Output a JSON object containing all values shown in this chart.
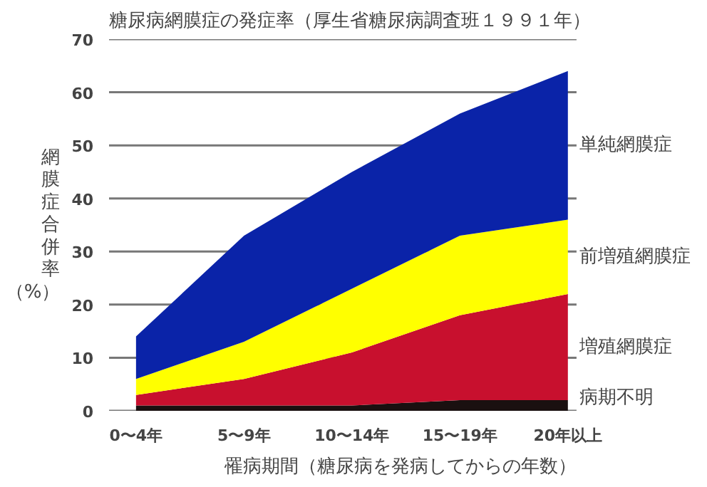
{
  "chart_data": {
    "type": "area",
    "stacked": true,
    "title": "糖尿病網膜症の発症率（厚生省糖尿病調査班１９９１年）",
    "xlabel": "罹病期間（糖尿病を発病してからの年数）",
    "ylabel": "網膜症合併率（%）",
    "categories": [
      "0〜4年",
      "5〜9年",
      "10〜14年",
      "15〜19年",
      "20年以上"
    ],
    "series": [
      {
        "name": "病期不明",
        "color": "#1a1010",
        "values": [
          1,
          1,
          1,
          2,
          2
        ]
      },
      {
        "name": "増殖網膜症",
        "color": "#c8102e",
        "values": [
          2,
          5,
          10,
          16,
          20
        ]
      },
      {
        "name": "前増殖網膜症",
        "color": "#ffff00",
        "values": [
          3,
          7,
          12,
          15,
          14
        ]
      },
      {
        "name": "単純網膜症",
        "color": "#0a23a8",
        "values": [
          8,
          20,
          22,
          23,
          28
        ]
      }
    ],
    "ylim": [
      0,
      70
    ],
    "yticks": [
      0,
      10,
      20,
      30,
      40,
      50,
      60,
      70
    ],
    "grid": "y"
  }
}
